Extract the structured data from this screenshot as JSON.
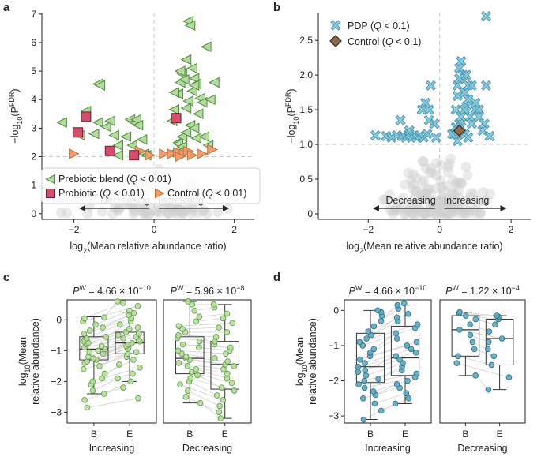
{
  "panel_labels": [
    "a",
    "b",
    "c",
    "d"
  ],
  "colors": {
    "prebiotic": "#b5dca0",
    "prebiotic_edge": "#4f8a3a",
    "probiotic": "#d34e6a",
    "probiotic_edge": "#6a1f2f",
    "control_a": "#ec9f6c",
    "control_a_edge": "#c56e3c",
    "pdp": "#7ec3d9",
    "pdp_edge": "#3d8ea8",
    "control_b": "#8b6a52",
    "control_b_edge": "#3b2a1e",
    "background_pts": "#d0d0d0",
    "green_pts": "#b8dc9f",
    "green_pts_edge": "#5e9a45",
    "blue_pts": "#5ea9c0",
    "blue_pts_edge": "#2d6f85"
  },
  "chart_data": [
    {
      "id": "a",
      "type": "scatter",
      "title": "",
      "xlabel_prefix": "log",
      "xlabel_sub": "2",
      "xlabel_rest": "(Mean relative abundance ratio)",
      "ylabel_prefix": "−log",
      "ylabel_sub": "10",
      "ylabel_mid": "(P",
      "ylabel_sup": "FDR",
      "ylabel_end": ")",
      "xlim": [
        -2.8,
        2.5
      ],
      "ylim": [
        -0.2,
        7.05
      ],
      "xticks": [
        -2,
        0,
        2
      ],
      "yticks": [
        0,
        1,
        2,
        3,
        4,
        5,
        6,
        7
      ],
      "threshold_y": 2.0,
      "arrow_left_label": "Decreasing",
      "arrow_right_label": "Increasing",
      "legend": [
        {
          "label_main": "Prebiotic blend",
          "label_q": "Q",
          "label_cond": " < 0.01)"
        },
        {
          "label_main": "Probiotic",
          "label_q": "Q",
          "label_cond": " < 0.01)"
        },
        {
          "label_main": "Control",
          "label_q": "Q",
          "label_cond": " < 0.01)"
        }
      ],
      "series": [
        {
          "name": "Prebiotic blend",
          "marker": "triangle-left",
          "x": [
            -2.3,
            -1.7,
            -1.4,
            -1.35,
            -1.4,
            -1.2,
            -1.1,
            -1.0,
            -0.9,
            -0.7,
            -0.55,
            -0.6,
            -0.5,
            -0.45,
            -0.4,
            -0.25,
            -0.2,
            -0.3,
            -0.9,
            -1.5,
            -1.85,
            0.5,
            0.6,
            0.65,
            0.7,
            0.8,
            0.85,
            0.9,
            0.95,
            1.0,
            1.05,
            1.15,
            1.3,
            0.55,
            0.6,
            0.7,
            0.8,
            0.9,
            1.0,
            1.1,
            1.2,
            1.4,
            1.5,
            0.5,
            0.65,
            0.75,
            0.85,
            0.95,
            1.05,
            0.6,
            0.7,
            1.25,
            0.8,
            1.0,
            0.45,
            1.35
          ],
          "y": [
            3.2,
            3.6,
            4.55,
            4.5,
            3.2,
            3.05,
            3.25,
            2.75,
            2.4,
            2.7,
            2.4,
            3.3,
            3.2,
            3.3,
            3.1,
            2.1,
            2.05,
            2.6,
            2.05,
            2.8,
            2.75,
            3.65,
            4.2,
            4.6,
            4.9,
            5.4,
            6.75,
            6.6,
            5.1,
            4.75,
            4.55,
            4.05,
            5.85,
            2.2,
            2.5,
            2.7,
            2.85,
            3.1,
            3.0,
            3.5,
            3.9,
            4.0,
            4.6,
            4.25,
            5.0,
            4.7,
            3.95,
            4.3,
            2.65,
            2.45,
            2.35,
            2.7,
            3.7,
            4.5,
            3.25,
            2.4
          ]
        },
        {
          "name": "Probiotic",
          "marker": "square",
          "x": [
            -1.9,
            -1.7,
            -1.1,
            -0.5,
            0.55
          ],
          "y": [
            2.85,
            3.4,
            2.2,
            2.05,
            3.35
          ]
        },
        {
          "name": "Control",
          "marker": "triangle-right",
          "x": [
            -2.0,
            -0.35,
            -0.1,
            0.25,
            0.45,
            0.6,
            0.75,
            0.85,
            0.95,
            1.2,
            1.45,
            0.65
          ],
          "y": [
            2.1,
            2.2,
            2.05,
            2.1,
            2.1,
            2.15,
            2.1,
            2.2,
            2.05,
            2.1,
            2.25,
            2.0
          ]
        }
      ]
    },
    {
      "id": "b",
      "type": "scatter",
      "title": "",
      "xlabel_prefix": "log",
      "xlabel_sub": "2",
      "xlabel_rest": "(Mean relative abundance ratio)",
      "ylabel_prefix": "−log",
      "ylabel_sub": "10",
      "ylabel_mid": "(P",
      "ylabel_sup": "FDR",
      "ylabel_end": ")",
      "xlim": [
        -3.4,
        2.55
      ],
      "ylim": [
        -0.08,
        2.9
      ],
      "xticks": [
        -2,
        0,
        2
      ],
      "yticks": [
        0,
        0.5,
        1.0,
        1.5,
        2.0,
        2.5
      ],
      "ytick_labels": [
        "0",
        "0.5",
        "1.0",
        "1.5",
        "2.0",
        "2.5"
      ],
      "threshold_y": 1.0,
      "arrow_left_label": "Decreasing",
      "arrow_right_label": "Increasing",
      "legend": [
        {
          "label_main": "PDP",
          "label_q": "Q",
          "label_cond": " < 0.1)"
        },
        {
          "label_main": "Control",
          "label_q": "Q",
          "label_cond": " < 0.1)"
        }
      ],
      "series": [
        {
          "name": "PDP",
          "marker": "x",
          "x": [
            -1.8,
            -1.5,
            -1.35,
            -1.2,
            -1.05,
            -0.95,
            -0.85,
            -0.75,
            -0.65,
            -0.55,
            -0.45,
            -0.35,
            -0.3,
            -0.25,
            -0.15,
            -0.1,
            -1.1,
            -0.85,
            -0.4,
            -0.5,
            -0.3,
            0.4,
            0.45,
            0.5,
            0.55,
            0.6,
            0.65,
            0.7,
            0.75,
            0.8,
            0.85,
            0.9,
            1.0,
            1.1,
            1.2,
            1.3,
            1.4,
            0.45,
            0.5,
            0.55,
            0.6,
            0.7,
            0.8,
            0.9,
            1.0,
            0.5,
            0.6,
            0.7,
            1.1,
            1.3,
            0.35,
            0.8,
            1.25,
            0.55,
            0.75
          ],
          "y": [
            1.13,
            1.12,
            1.1,
            1.13,
            1.12,
            1.1,
            1.15,
            1.12,
            1.1,
            1.13,
            1.1,
            1.15,
            1.5,
            1.85,
            1.3,
            1.1,
            1.35,
            1.2,
            1.6,
            1.5,
            1.35,
            1.15,
            1.5,
            1.85,
            2.1,
            2.2,
            2.0,
            1.75,
            1.55,
            1.85,
            1.4,
            1.3,
            1.5,
            1.5,
            1.2,
            2.85,
            1.12,
            1.25,
            1.05,
            1.3,
            1.4,
            1.5,
            1.65,
            1.85,
            1.6,
            1.7,
            1.25,
            1.15,
            1.4,
            1.85,
            1.15,
            1.1,
            1.3,
            1.95,
            2.0
          ]
        },
        {
          "name": "Control",
          "marker": "diamond",
          "x": [
            0.55
          ],
          "y": [
            1.2
          ]
        }
      ]
    },
    {
      "id": "c",
      "type": "box",
      "ylabel_line1": "log",
      "ylabel_sub": "10",
      "ylabel_line1_rest": "(Mean",
      "ylabel_line2": "relative abundance)",
      "ylim": [
        -3.35,
        0.65
      ],
      "yticks": [
        0,
        -1,
        -2,
        -3
      ],
      "ytick_labels": [
        "0",
        "−1",
        "−2",
        "−3"
      ],
      "subplots": [
        {
          "group": "Increasing",
          "categories": [
            "B",
            "E"
          ],
          "p_label": "P",
          "p_sup": "W",
          "p_value": " = 4.66 × 10",
          "p_exp": "−10",
          "box": [
            {
              "q1": -1.3,
              "median": -0.95,
              "q3": -0.55,
              "whisker_low": -2.4,
              "whisker_high": 0.1
            },
            {
              "q1": -1.1,
              "median": -0.75,
              "q3": -0.4,
              "whisker_low": -2.0,
              "whisker_high": 0.25
            }
          ],
          "points_b": [
            -2.85,
            -2.6,
            -2.4,
            -2.3,
            -2.1,
            -2.0,
            -1.9,
            -1.75,
            -1.6,
            -1.5,
            -1.4,
            -1.35,
            -1.3,
            -1.25,
            -1.2,
            -1.1,
            -1.05,
            -1.0,
            -0.95,
            -0.9,
            -0.85,
            -0.8,
            -0.75,
            -0.7,
            -0.65,
            -0.6,
            -0.55,
            -0.45,
            -0.35,
            -0.25,
            -0.15,
            -0.05,
            0.05,
            0.08
          ],
          "points_e": [
            -2.55,
            -2.2,
            -2.0,
            -1.9,
            -1.75,
            -1.55,
            -1.45,
            -1.3,
            -1.2,
            -1.1,
            -1.05,
            -0.95,
            -0.9,
            -0.85,
            -0.8,
            -0.75,
            -0.7,
            -0.65,
            -0.6,
            -0.55,
            -0.5,
            -0.45,
            -0.4,
            -0.3,
            -0.25,
            -0.15,
            -0.05,
            0.05,
            0.15,
            0.22,
            0.3,
            0.45,
            0.55,
            0.6
          ]
        },
        {
          "group": "Decreasing",
          "categories": [
            "B",
            "E"
          ],
          "p_label": "P",
          "p_sup": "W",
          "p_value": " = 5.96 × 10",
          "p_exp": "−8",
          "box": [
            {
              "q1": -1.75,
              "median": -1.25,
              "q3": -0.55,
              "whisker_low": -2.7,
              "whisker_high": 0.6
            },
            {
              "q1": -2.25,
              "median": -1.45,
              "q3": -0.7,
              "whisker_low": -3.2,
              "whisker_high": 0.5
            }
          ],
          "points_b": [
            -2.7,
            -2.5,
            -2.3,
            -2.1,
            -2.0,
            -1.9,
            -1.8,
            -1.7,
            -1.6,
            -1.5,
            -1.4,
            -1.3,
            -1.25,
            -1.2,
            -1.1,
            -1.0,
            -0.9,
            -0.8,
            -0.7,
            -0.6,
            -0.5,
            -0.4,
            -0.3,
            -0.2,
            -0.05,
            0.1,
            0.3,
            0.5,
            0.6
          ],
          "points_e": [
            -3.2,
            -3.0,
            -2.8,
            -2.6,
            -2.45,
            -2.3,
            -2.2,
            -2.05,
            -1.9,
            -1.75,
            -1.6,
            -1.5,
            -1.45,
            -1.35,
            -1.25,
            -1.1,
            -1.0,
            -0.9,
            -0.8,
            -0.7,
            -0.55,
            -0.4,
            -0.25,
            -0.1,
            0.05,
            0.2,
            0.4,
            0.5
          ]
        }
      ]
    },
    {
      "id": "d",
      "type": "box",
      "ylabel_line1": "log",
      "ylabel_sub": "10",
      "ylabel_line1_rest": "(Mean",
      "ylabel_line2": "relative abundance)",
      "ylim": [
        -3.2,
        0.3
      ],
      "yticks": [
        0,
        -1,
        -2,
        -3
      ],
      "ytick_labels": [
        "0",
        "−1",
        "−2",
        "−3"
      ],
      "subplots": [
        {
          "group": "Increasing",
          "categories": [
            "B",
            "E"
          ],
          "p_label": "P",
          "p_sup": "W",
          "p_value": " = 4.66 × 10",
          "p_exp": "−10",
          "box": [
            {
              "q1": -2.05,
              "median": -1.6,
              "q3": -0.65,
              "whisker_low": -3.1,
              "whisker_high": 0.0
            },
            {
              "q1": -1.85,
              "median": -1.35,
              "q3": -0.45,
              "whisker_low": -2.65,
              "whisker_high": 0.15
            }
          ],
          "points_b": [
            -3.1,
            -2.85,
            -2.65,
            -2.5,
            -2.4,
            -2.3,
            -2.2,
            -2.1,
            -2.0,
            -1.95,
            -1.85,
            -1.75,
            -1.7,
            -1.6,
            -1.5,
            -1.4,
            -1.3,
            -1.2,
            -1.1,
            -1.0,
            -0.9,
            -0.8,
            -0.7,
            -0.6,
            -0.45,
            -0.3,
            -0.15,
            -0.05,
            0.0
          ],
          "points_e": [
            -2.65,
            -2.5,
            -2.35,
            -2.2,
            -2.1,
            -2.0,
            -1.9,
            -1.8,
            -1.7,
            -1.6,
            -1.5,
            -1.4,
            -1.3,
            -1.2,
            -1.1,
            -1.0,
            -0.9,
            -0.8,
            -0.65,
            -0.5,
            -0.4,
            -0.3,
            -0.2,
            -0.1,
            0.05,
            0.15,
            0.2
          ]
        },
        {
          "group": "Decreasing",
          "categories": [
            "B",
            "E"
          ],
          "p_label": "P",
          "p_sup": "W",
          "p_value": " = 1.22 × 10",
          "p_exp": "−4",
          "box": [
            {
              "q1": -1.3,
              "median": -0.55,
              "q3": -0.15,
              "whisker_low": -1.85,
              "whisker_high": -0.05
            },
            {
              "q1": -1.55,
              "median": -0.8,
              "q3": -0.25,
              "whisker_low": -2.25,
              "whisker_high": -0.15
            }
          ],
          "points_b": [
            -1.85,
            -1.5,
            -1.3,
            -1.1,
            -0.9,
            -0.7,
            -0.55,
            -0.4,
            -0.25,
            -0.15,
            -0.08,
            -0.05
          ],
          "points_e": [
            -2.25,
            -1.9,
            -1.55,
            -1.3,
            -1.1,
            -0.9,
            -0.8,
            -0.6,
            -0.4,
            -0.25,
            -0.18,
            -0.15
          ]
        }
      ]
    }
  ]
}
